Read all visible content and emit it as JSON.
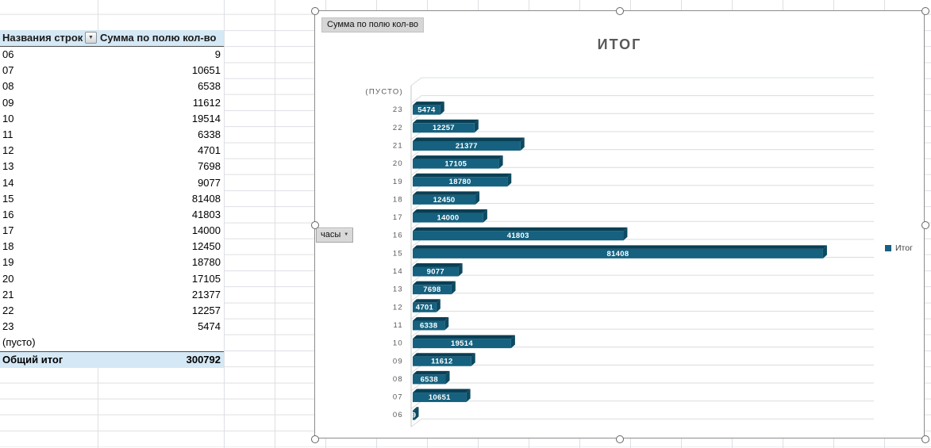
{
  "pivot_table": {
    "headers": {
      "row_labels": "Названия строк",
      "values": "Сумма по полю кол-во"
    },
    "rows": [
      {
        "label": "06",
        "value": "9"
      },
      {
        "label": "07",
        "value": "10651"
      },
      {
        "label": "08",
        "value": "6538"
      },
      {
        "label": "09",
        "value": "11612"
      },
      {
        "label": "10",
        "value": "19514"
      },
      {
        "label": "11",
        "value": "6338"
      },
      {
        "label": "12",
        "value": "4701"
      },
      {
        "label": "13",
        "value": "7698"
      },
      {
        "label": "14",
        "value": "9077"
      },
      {
        "label": "15",
        "value": "81408"
      },
      {
        "label": "16",
        "value": "41803"
      },
      {
        "label": "17",
        "value": "14000"
      },
      {
        "label": "18",
        "value": "12450"
      },
      {
        "label": "19",
        "value": "18780"
      },
      {
        "label": "20",
        "value": "17105"
      },
      {
        "label": "21",
        "value": "21377"
      },
      {
        "label": "22",
        "value": "12257"
      },
      {
        "label": "23",
        "value": "5474"
      },
      {
        "label": "(пусто)",
        "value": ""
      }
    ],
    "total": {
      "label": "Общий итог",
      "value": "300792"
    }
  },
  "chart": {
    "field_buttons": {
      "values": "Сумма по полю кол-во",
      "axis": "часы"
    },
    "title": "ИТОГ",
    "legend_label": "Итог",
    "colors": {
      "bar_face": "#15617f",
      "bar_top": "#0a3f54",
      "bar_side": "#0d4a61",
      "separator": "#d9dce0",
      "wall": "#c4c7ca",
      "axis_text": "#595959",
      "bar_label": "#ffffff"
    }
  },
  "chart_data": {
    "type": "bar",
    "orientation": "horizontal",
    "effect": "3d",
    "title": "ИТОГ",
    "series_name": "Итог",
    "categories": [
      "(ПУСТО)",
      "23",
      "22",
      "21",
      "20",
      "19",
      "18",
      "17",
      "16",
      "15",
      "14",
      "13",
      "12",
      "11",
      "10",
      "09",
      "08",
      "07",
      "06"
    ],
    "values": [
      null,
      5474,
      12257,
      21377,
      17105,
      18780,
      12450,
      14000,
      41803,
      81408,
      9077,
      7698,
      4701,
      6338,
      19514,
      11612,
      6538,
      10651,
      9
    ],
    "xlim": [
      0,
      90000
    ],
    "value_labels": true,
    "legend_position": "right",
    "axis_field": "часы",
    "values_field": "Сумма по полю кол-во"
  }
}
